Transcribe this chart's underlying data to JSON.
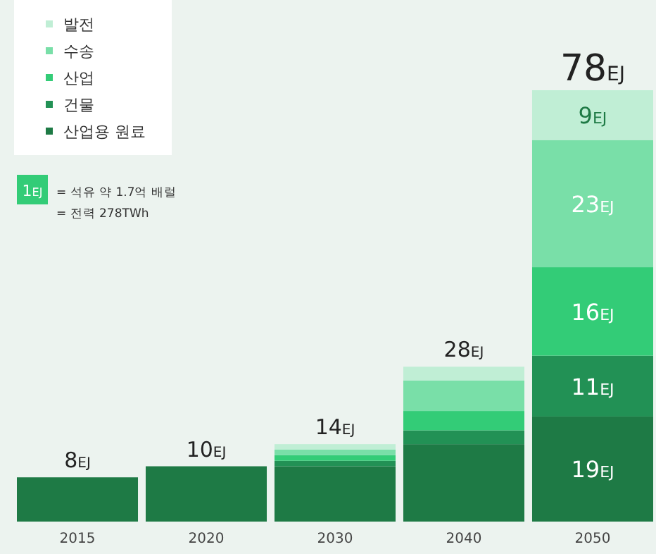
{
  "chart_data": {
    "type": "bar",
    "stacked": true,
    "categories": [
      "2015",
      "2020",
      "2030",
      "2040",
      "2050"
    ],
    "series": [
      {
        "name": "산업용 원료",
        "color": "#1e7a45",
        "values": [
          8,
          10,
          10,
          14,
          19
        ],
        "value_labels": [
          null,
          null,
          null,
          null,
          "19EJ"
        ]
      },
      {
        "name": "건물",
        "color": "#229155",
        "values": [
          0,
          0,
          1,
          2.5,
          11
        ],
        "value_labels": [
          null,
          null,
          null,
          null,
          "11EJ"
        ]
      },
      {
        "name": "산업",
        "color": "#33cc77",
        "values": [
          0,
          0,
          1,
          3.5,
          16
        ],
        "value_labels": [
          null,
          null,
          null,
          null,
          "16EJ"
        ]
      },
      {
        "name": "수송",
        "color": "#79dfa8",
        "values": [
          0,
          0,
          1,
          5.5,
          23
        ],
        "value_labels": [
          null,
          null,
          null,
          null,
          "23EJ"
        ]
      },
      {
        "name": "발전",
        "color": "#c0eed5",
        "values": [
          0,
          0,
          1,
          2.5,
          9
        ],
        "value_labels": [
          null,
          null,
          null,
          null,
          "9EJ"
        ]
      }
    ],
    "totals": [
      "8EJ",
      "10EJ",
      "14EJ",
      "28EJ",
      "78EJ"
    ],
    "legend": "top left",
    "marker": "square",
    "annotations": [
      "1EJ",
      "= 석유 약 1.7억 배럴",
      "= 전력 278TWh"
    ]
  }
}
